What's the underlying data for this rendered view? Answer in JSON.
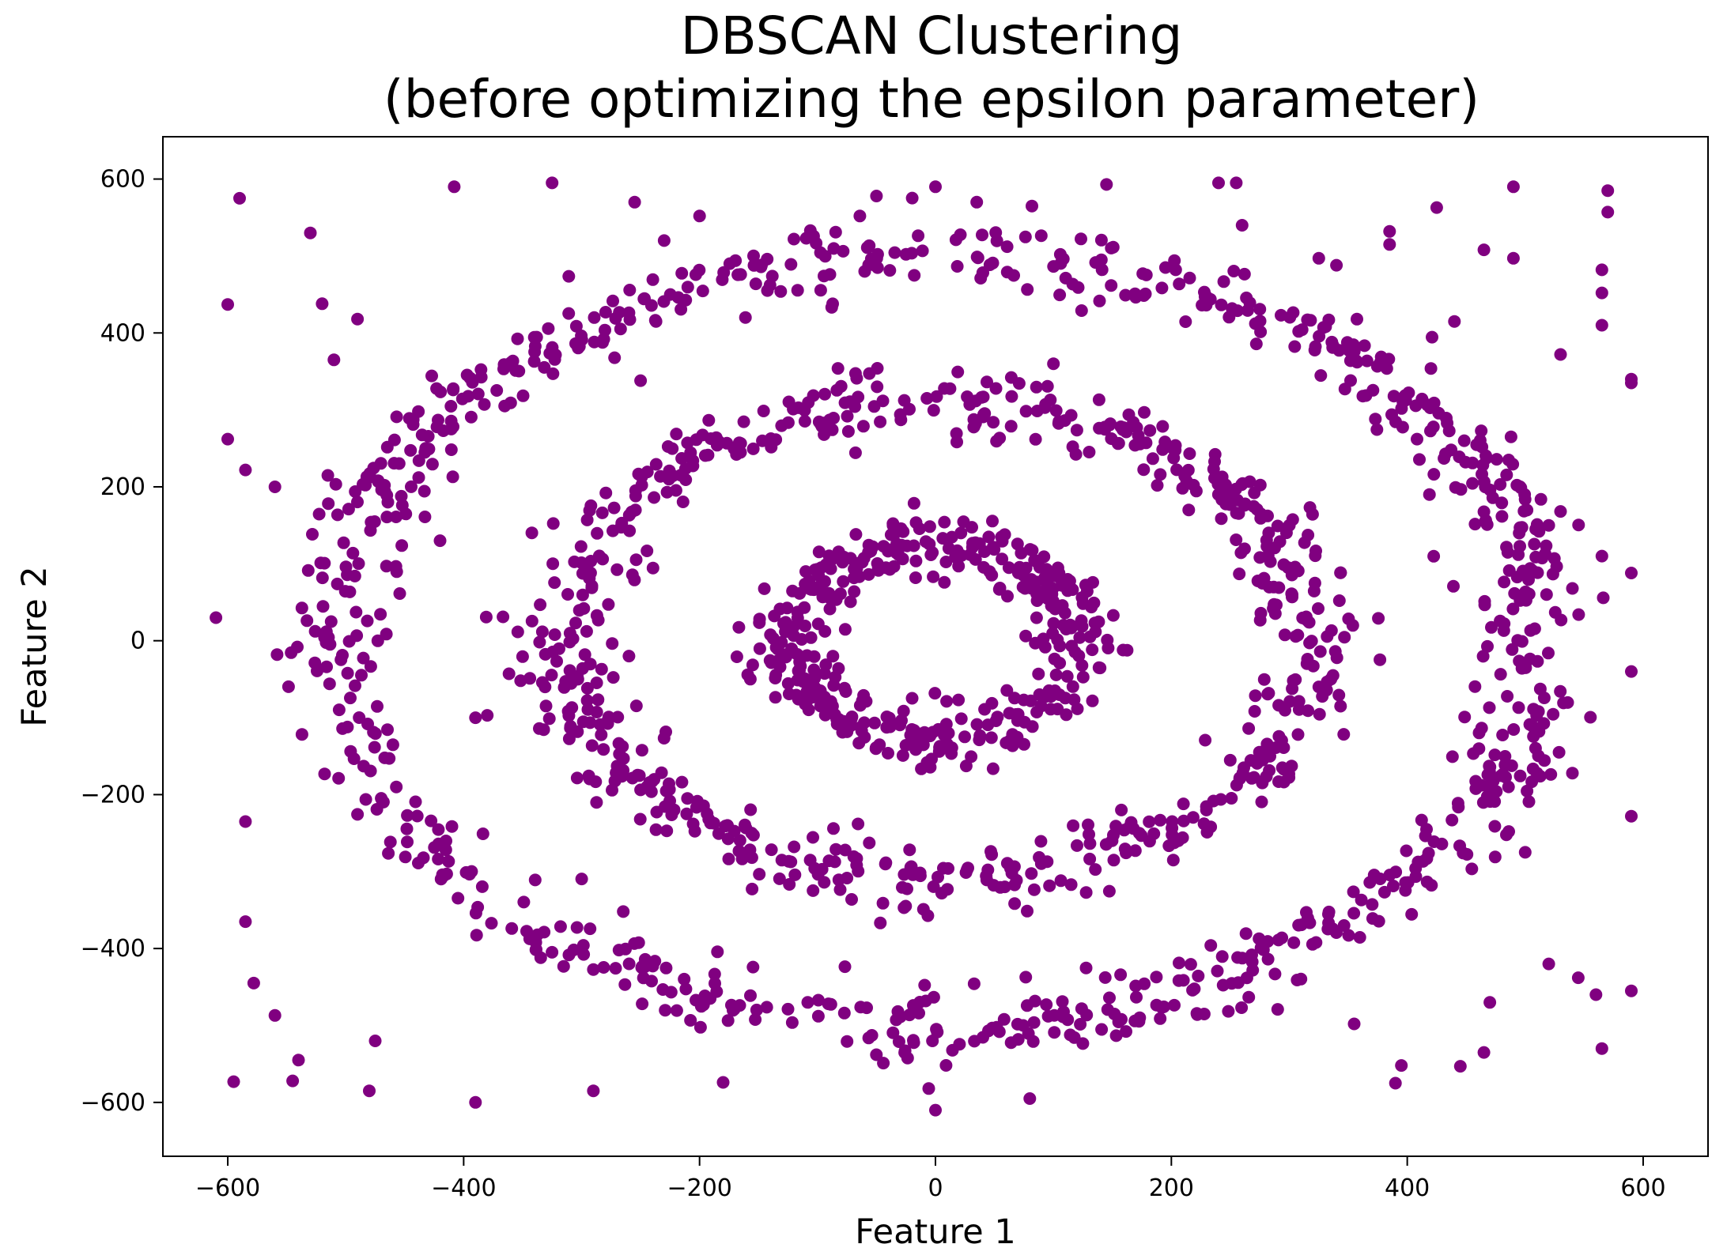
{
  "chart_data": {
    "type": "scatter",
    "title_lines": [
      "DBSCAN Clustering",
      "(before optimizing the epsilon parameter)"
    ],
    "xlabel": "Feature 1",
    "ylabel": "Feature 2",
    "xlim": [
      -655,
      655
    ],
    "ylim": [
      -670,
      655
    ],
    "xticks": [
      -600,
      -400,
      -200,
      0,
      200,
      400,
      600
    ],
    "yticks": [
      600,
      400,
      200,
      0,
      -200,
      -400,
      -600
    ],
    "xtick_labels": [
      "−600",
      "−400",
      "−200",
      "0",
      "200",
      "400",
      "600"
    ],
    "ytick_labels": [
      "600",
      "400",
      "200",
      "0",
      "−200",
      "−400",
      "−600"
    ],
    "grid": false,
    "legend": "none",
    "marker_color": "#800080",
    "structure": "three concentric noisy rings plus scattered noise",
    "rings": [
      {
        "center": [
          0,
          0
        ],
        "rx": 125,
        "ry": 125,
        "points": 420,
        "spread": 22
      },
      {
        "center": [
          0,
          0
        ],
        "rx": 320,
        "ry": 310,
        "points": 640,
        "spread": 24
      },
      {
        "center": [
          0,
          0
        ],
        "rx": 510,
        "ry": 500,
        "points": 860,
        "spread": 26
      }
    ],
    "noise_points": [
      [
        -590,
        575
      ],
      [
        -600,
        437
      ],
      [
        -600,
        262
      ],
      [
        -585,
        222
      ],
      [
        -585,
        -235
      ],
      [
        -585,
        -365
      ],
      [
        -578,
        -445
      ],
      [
        -595,
        -573
      ],
      [
        -545,
        -572
      ],
      [
        -540,
        -545
      ],
      [
        -560,
        -487
      ],
      [
        -520,
        438
      ],
      [
        -530,
        530
      ],
      [
        -408,
        590
      ],
      [
        -325,
        595
      ],
      [
        -255,
        570
      ],
      [
        -200,
        552
      ],
      [
        -50,
        578
      ],
      [
        0,
        590
      ],
      [
        35,
        570
      ],
      [
        145,
        593
      ],
      [
        240,
        595
      ],
      [
        255,
        595
      ],
      [
        260,
        540
      ],
      [
        325,
        497
      ],
      [
        340,
        488
      ],
      [
        385,
        515
      ],
      [
        385,
        532
      ],
      [
        425,
        563
      ],
      [
        465,
        508
      ],
      [
        490,
        497
      ],
      [
        490,
        590
      ],
      [
        570,
        585
      ],
      [
        570,
        557
      ],
      [
        565,
        482
      ],
      [
        565,
        452
      ],
      [
        565,
        410
      ],
      [
        590,
        340
      ],
      [
        590,
        335
      ],
      [
        530,
        372
      ],
      [
        590,
        88
      ],
      [
        590,
        -40
      ],
      [
        590,
        -228
      ],
      [
        590,
        -455
      ],
      [
        560,
        -460
      ],
      [
        545,
        -438
      ],
      [
        520,
        -420
      ],
      [
        565,
        -530
      ],
      [
        470,
        -470
      ],
      [
        465,
        -535
      ],
      [
        445,
        -553
      ],
      [
        395,
        -552
      ],
      [
        390,
        -575
      ],
      [
        355,
        -498
      ],
      [
        -475,
        -520
      ],
      [
        -480,
        -585
      ],
      [
        -390,
        -600
      ],
      [
        -290,
        -585
      ],
      [
        -180,
        -574
      ],
      [
        80,
        -595
      ],
      [
        0,
        -610
      ],
      [
        540,
        68
      ],
      [
        565,
        110
      ],
      [
        520,
        150
      ],
      [
        530,
        168
      ],
      [
        500,
        -275
      ],
      [
        510,
        -172
      ],
      [
        540,
        -172
      ],
      [
        488,
        265
      ],
      [
        440,
        415
      ],
      [
        300,
        150
      ],
      [
        325,
        -60
      ],
      [
        -390,
        -100
      ],
      [
        -380,
        -97
      ],
      [
        -420,
        130
      ],
      [
        -510,
        365
      ],
      [
        -490,
        418
      ],
      [
        -560,
        200
      ],
      [
        -610,
        30
      ],
      [
        -250,
        338
      ],
      [
        -230,
        520
      ],
      [
        -120,
        522
      ],
      [
        -60,
        480
      ],
      [
        100,
        360
      ],
      [
        195,
        485
      ]
    ]
  }
}
